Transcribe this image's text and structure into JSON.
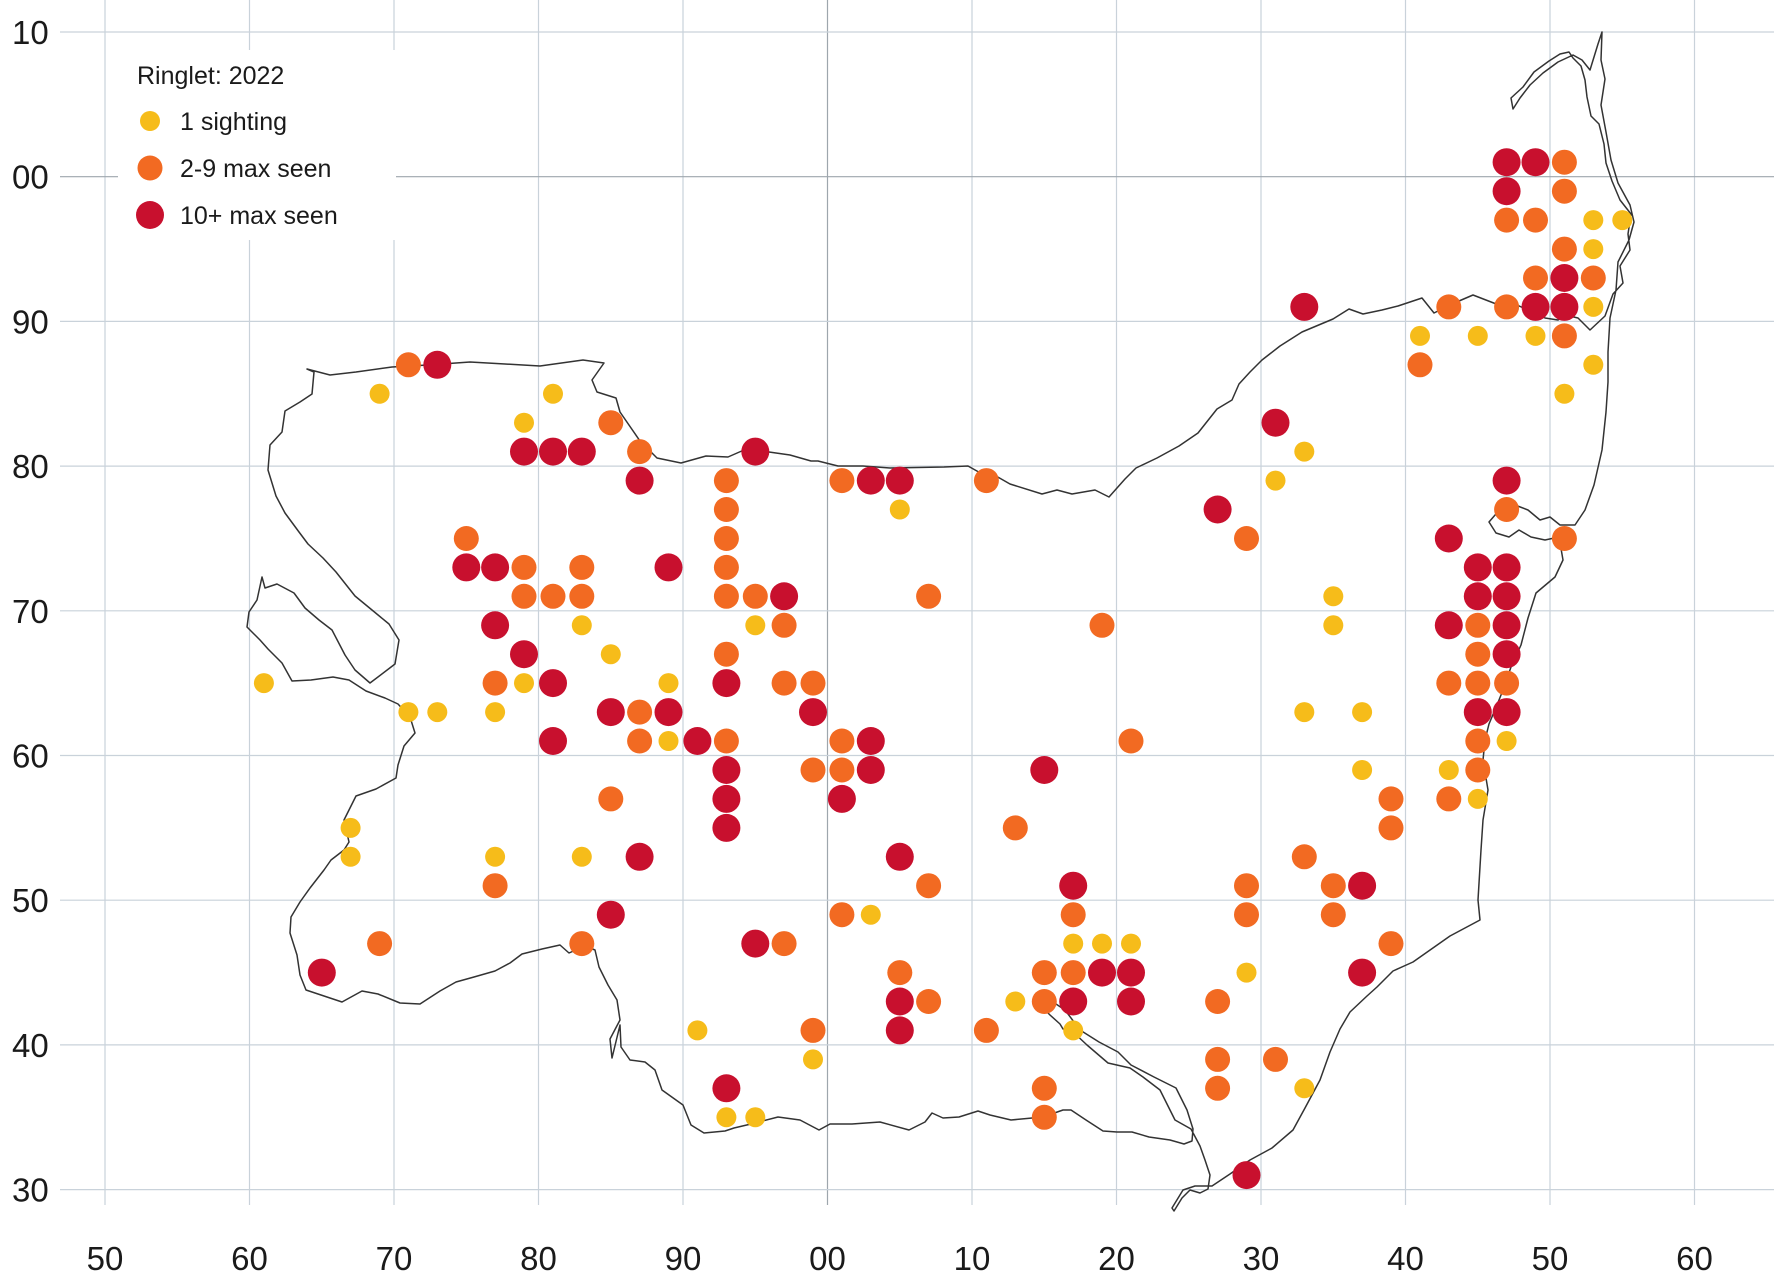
{
  "chart_data": {
    "type": "scatter",
    "title": "Ringlet:  2022",
    "x_ticks": [
      "50",
      "60",
      "70",
      "80",
      "90",
      "00",
      "10",
      "20",
      "30",
      "40",
      "50",
      "60"
    ],
    "y_ticks": [
      "10",
      "00",
      "90",
      "80",
      "70",
      "60",
      "50",
      "40",
      "30"
    ],
    "legend": [
      {
        "name": "1 sighting",
        "color": "#f6bc1a"
      },
      {
        "name": "2-9 max seen",
        "color": "#f26a22"
      },
      {
        "name": "10+ max seen",
        "color": "#c8102e"
      }
    ],
    "series": [
      {
        "name": "1 sighting",
        "points": [
          [
            61,
            65
          ],
          [
            67,
            55
          ],
          [
            67,
            53
          ],
          [
            69,
            85
          ],
          [
            71,
            63
          ],
          [
            73,
            63
          ],
          [
            77,
            63
          ],
          [
            77,
            53
          ],
          [
            79,
            83
          ],
          [
            79,
            65
          ],
          [
            81,
            85
          ],
          [
            83,
            69
          ],
          [
            83,
            53
          ],
          [
            85,
            67
          ],
          [
            89,
            65
          ],
          [
            89,
            61
          ],
          [
            91,
            41
          ],
          [
            93,
            35
          ],
          [
            95,
            35
          ],
          [
            95,
            69
          ],
          [
            99,
            39
          ],
          [
            103,
            49
          ],
          [
            105,
            77
          ],
          [
            113,
            43
          ],
          [
            117,
            47
          ],
          [
            117,
            41
          ],
          [
            119,
            47
          ],
          [
            121,
            47
          ],
          [
            129,
            45
          ],
          [
            131,
            79
          ],
          [
            133,
            81
          ],
          [
            133,
            63
          ],
          [
            133,
            37
          ],
          [
            135,
            71
          ],
          [
            135,
            69
          ],
          [
            137,
            63
          ],
          [
            137,
            59
          ],
          [
            141,
            89
          ],
          [
            143,
            59
          ],
          [
            145,
            89
          ],
          [
            145,
            57
          ],
          [
            147,
            61
          ],
          [
            149,
            89
          ],
          [
            151,
            85
          ],
          [
            153,
            97
          ],
          [
            153,
            95
          ],
          [
            153,
            91
          ],
          [
            153,
            87
          ],
          [
            155,
            97
          ]
        ]
      },
      {
        "name": "2-9 max seen",
        "points": [
          [
            69,
            47
          ],
          [
            71,
            87
          ],
          [
            75,
            75
          ],
          [
            77,
            65
          ],
          [
            77,
            51
          ],
          [
            79,
            73
          ],
          [
            79,
            71
          ],
          [
            81,
            71
          ],
          [
            83,
            73
          ],
          [
            83,
            71
          ],
          [
            83,
            47
          ],
          [
            85,
            83
          ],
          [
            85,
            57
          ],
          [
            87,
            81
          ],
          [
            87,
            63
          ],
          [
            87,
            61
          ],
          [
            93,
            79
          ],
          [
            93,
            77
          ],
          [
            93,
            75
          ],
          [
            93,
            73
          ],
          [
            93,
            71
          ],
          [
            93,
            67
          ],
          [
            93,
            61
          ],
          [
            95,
            71
          ],
          [
            97,
            69
          ],
          [
            97,
            65
          ],
          [
            97,
            47
          ],
          [
            99,
            65
          ],
          [
            99,
            59
          ],
          [
            99,
            41
          ],
          [
            101,
            79
          ],
          [
            101,
            61
          ],
          [
            101,
            59
          ],
          [
            101,
            49
          ],
          [
            105,
            45
          ],
          [
            107,
            71
          ],
          [
            107,
            51
          ],
          [
            107,
            43
          ],
          [
            111,
            79
          ],
          [
            111,
            41
          ],
          [
            113,
            55
          ],
          [
            115,
            45
          ],
          [
            115,
            43
          ],
          [
            115,
            37
          ],
          [
            115,
            35
          ],
          [
            117,
            49
          ],
          [
            117,
            45
          ],
          [
            119,
            69
          ],
          [
            121,
            61
          ],
          [
            127,
            43
          ],
          [
            127,
            39
          ],
          [
            127,
            37
          ],
          [
            129,
            75
          ],
          [
            129,
            51
          ],
          [
            129,
            49
          ],
          [
            131,
            39
          ],
          [
            133,
            53
          ],
          [
            135,
            51
          ],
          [
            135,
            49
          ],
          [
            139,
            57
          ],
          [
            139,
            55
          ],
          [
            139,
            47
          ],
          [
            141,
            87
          ],
          [
            143,
            91
          ],
          [
            143,
            65
          ],
          [
            143,
            57
          ],
          [
            145,
            69
          ],
          [
            145,
            67
          ],
          [
            145,
            65
          ],
          [
            145,
            63
          ],
          [
            145,
            61
          ],
          [
            145,
            59
          ],
          [
            147,
            97
          ],
          [
            147,
            91
          ],
          [
            147,
            77
          ],
          [
            147,
            65
          ],
          [
            149,
            97
          ],
          [
            149,
            93
          ],
          [
            151,
            101
          ],
          [
            151,
            99
          ],
          [
            151,
            95
          ],
          [
            151,
            89
          ],
          [
            151,
            75
          ],
          [
            153,
            93
          ]
        ]
      },
      {
        "name": "10+ max seen",
        "points": [
          [
            65,
            45
          ],
          [
            73,
            87
          ],
          [
            75,
            73
          ],
          [
            77,
            73
          ],
          [
            77,
            69
          ],
          [
            79,
            81
          ],
          [
            79,
            67
          ],
          [
            81,
            81
          ],
          [
            81,
            65
          ],
          [
            81,
            61
          ],
          [
            83,
            81
          ],
          [
            85,
            63
          ],
          [
            85,
            49
          ],
          [
            87,
            79
          ],
          [
            87,
            53
          ],
          [
            89,
            73
          ],
          [
            89,
            63
          ],
          [
            91,
            61
          ],
          [
            93,
            65
          ],
          [
            93,
            59
          ],
          [
            93,
            57
          ],
          [
            93,
            55
          ],
          [
            93,
            37
          ],
          [
            95,
            81
          ],
          [
            95,
            47
          ],
          [
            97,
            71
          ],
          [
            99,
            63
          ],
          [
            101,
            57
          ],
          [
            103,
            79
          ],
          [
            103,
            61
          ],
          [
            103,
            59
          ],
          [
            105,
            79
          ],
          [
            105,
            53
          ],
          [
            105,
            43
          ],
          [
            105,
            41
          ],
          [
            115,
            59
          ],
          [
            117,
            51
          ],
          [
            117,
            43
          ],
          [
            119,
            45
          ],
          [
            121,
            45
          ],
          [
            121,
            43
          ],
          [
            127,
            77
          ],
          [
            129,
            31
          ],
          [
            131,
            83
          ],
          [
            133,
            91
          ],
          [
            137,
            51
          ],
          [
            137,
            45
          ],
          [
            143,
            75
          ],
          [
            143,
            69
          ],
          [
            145,
            73
          ],
          [
            145,
            71
          ],
          [
            145,
            63
          ],
          [
            147,
            101
          ],
          [
            147,
            99
          ],
          [
            147,
            79
          ],
          [
            147,
            73
          ],
          [
            147,
            71
          ],
          [
            147,
            69
          ],
          [
            147,
            67
          ],
          [
            147,
            63
          ],
          [
            149,
            101
          ],
          [
            149,
            91
          ],
          [
            151,
            93
          ],
          [
            151,
            91
          ]
        ]
      }
    ]
  }
}
